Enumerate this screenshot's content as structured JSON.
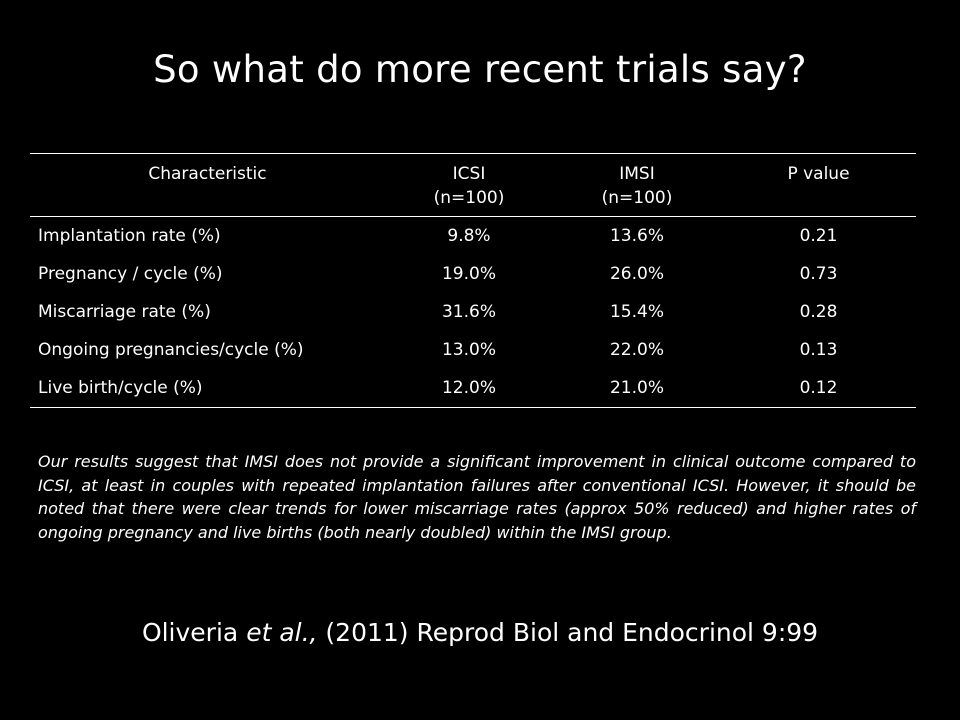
{
  "slide": {
    "title": "So what do more recent trials say?"
  },
  "table": {
    "headers": [
      {
        "line1": "Characteristic",
        "line2": ""
      },
      {
        "line1": "ICSI",
        "line2": "(n=100)"
      },
      {
        "line1": "IMSI",
        "line2": "(n=100)"
      },
      {
        "line1": "P value",
        "line2": ""
      }
    ],
    "rows": [
      {
        "characteristic": "Implantation rate (%)",
        "icsi": "9.8%",
        "imsi": "13.6%",
        "p": "0.21"
      },
      {
        "characteristic": "Pregnancy / cycle (%)",
        "icsi": "19.0%",
        "imsi": "26.0%",
        "p": "0.73"
      },
      {
        "characteristic": "Miscarriage rate (%)",
        "icsi": "31.6%",
        "imsi": "15.4%",
        "p": "0.28"
      },
      {
        "characteristic": "Ongoing pregnancies/cycle (%)",
        "icsi": "13.0%",
        "imsi": "22.0%",
        "p": "0.13"
      },
      {
        "characteristic": "Live birth/cycle (%)",
        "icsi": "12.0%",
        "imsi": "21.0%",
        "p": "0.12"
      }
    ]
  },
  "quote": {
    "text": "Our results suggest that IMSI does not provide a significant improvement in clinical outcome compared to ICSI, at least in couples with repeated implantation failures after conventional ICSI. However, it should be noted that there were clear trends for lower miscarriage rates (approx 50% reduced) and higher rates of ongoing pregnancy and live births (both nearly doubled) within the IMSI group."
  },
  "citation": {
    "author": "Oliveria ",
    "et_al": "et al.,",
    "rest": " (2011) Reprod Biol and Endocrinol 9:99"
  },
  "colors": {
    "background": "#000000",
    "text": "#ffffff"
  }
}
